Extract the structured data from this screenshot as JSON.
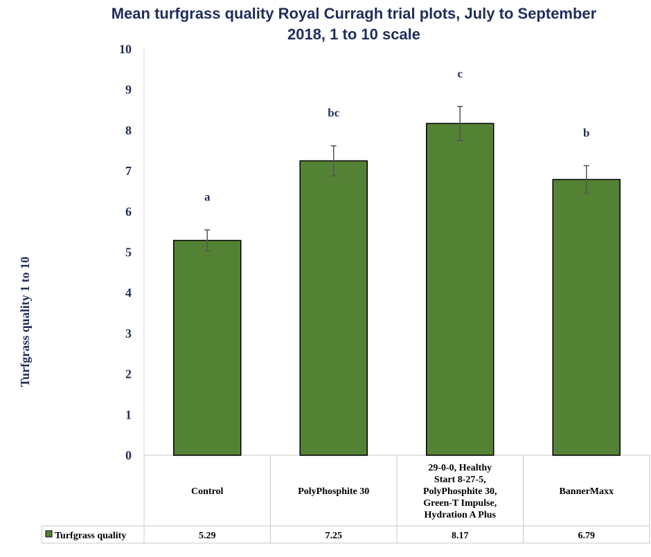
{
  "chart_data": {
    "type": "bar",
    "title_lines": [
      "Mean turfgrass quality Royal Curragh trial plots, July to September",
      "2018, 1 to 10 scale"
    ],
    "ylabel": "Turfgrass quality  1 to 10",
    "ylim": [
      0,
      10
    ],
    "yticks": [
      "0",
      "1",
      "2",
      "3",
      "4",
      "5",
      "6",
      "7",
      "8",
      "9",
      "10"
    ],
    "categories": [
      [
        "Control"
      ],
      [
        "PolyPhosphite 30"
      ],
      [
        "29-0-0, Healthy",
        "Start 8-27-5,",
        "PolyPhosphite 30,",
        "Green-T Impulse,",
        "Hydration A Plus"
      ],
      [
        "BannerMaxx"
      ]
    ],
    "series": [
      {
        "name": "Turfgrass quality",
        "values": [
          5.29,
          7.25,
          8.17,
          6.79
        ],
        "value_labels": [
          "5.29",
          "7.25",
          "8.17",
          "6.79"
        ],
        "error": [
          0.26,
          0.37,
          0.42,
          0.34
        ],
        "significance": [
          "a",
          "bc",
          "c",
          "b"
        ],
        "color": "#548235"
      }
    ],
    "grid": false,
    "legend": "data-table"
  }
}
